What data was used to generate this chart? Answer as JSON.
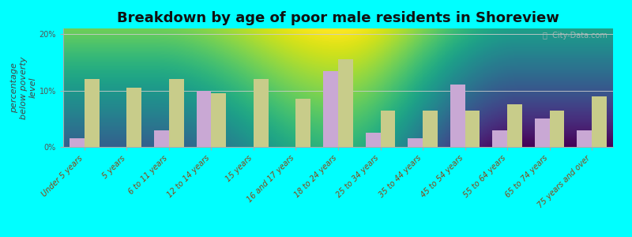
{
  "title": "Breakdown by age of poor male residents in Shoreview",
  "ylabel": "percentage\nbelow poverty\nlevel",
  "background_color": "#00FFFF",
  "categories": [
    "Under 5 years",
    "5 years",
    "6 to 11 years",
    "12 to 14 years",
    "15 years",
    "16 and 17 years",
    "18 to 24 years",
    "25 to 34 years",
    "35 to 44 years",
    "45 to 54 years",
    "55 to 64 years",
    "65 to 74 years",
    "75 years and over"
  ],
  "shoreview": [
    1.5,
    0,
    3.0,
    10.0,
    0,
    0,
    13.5,
    2.5,
    1.5,
    11.0,
    3.0,
    5.0,
    3.0
  ],
  "minnesota": [
    12.0,
    10.5,
    12.0,
    9.5,
    12.0,
    8.5,
    15.5,
    6.5,
    6.5,
    6.5,
    7.5,
    6.5,
    9.0
  ],
  "shoreview_color": "#c9a8d4",
  "minnesota_color": "#c8cc8a",
  "ylim": [
    0,
    21
  ],
  "yticks": [
    0,
    10,
    20
  ],
  "ytick_labels": [
    "0%",
    "10%",
    "20%"
  ],
  "watermark": "ⓘ  City-Data.com",
  "bar_width": 0.35,
  "title_fontsize": 13,
  "axis_fontsize": 8,
  "tick_fontsize": 7,
  "legend_fontsize": 9,
  "grad_top": "#eaf2e3",
  "grad_bottom": "#f5faf0"
}
